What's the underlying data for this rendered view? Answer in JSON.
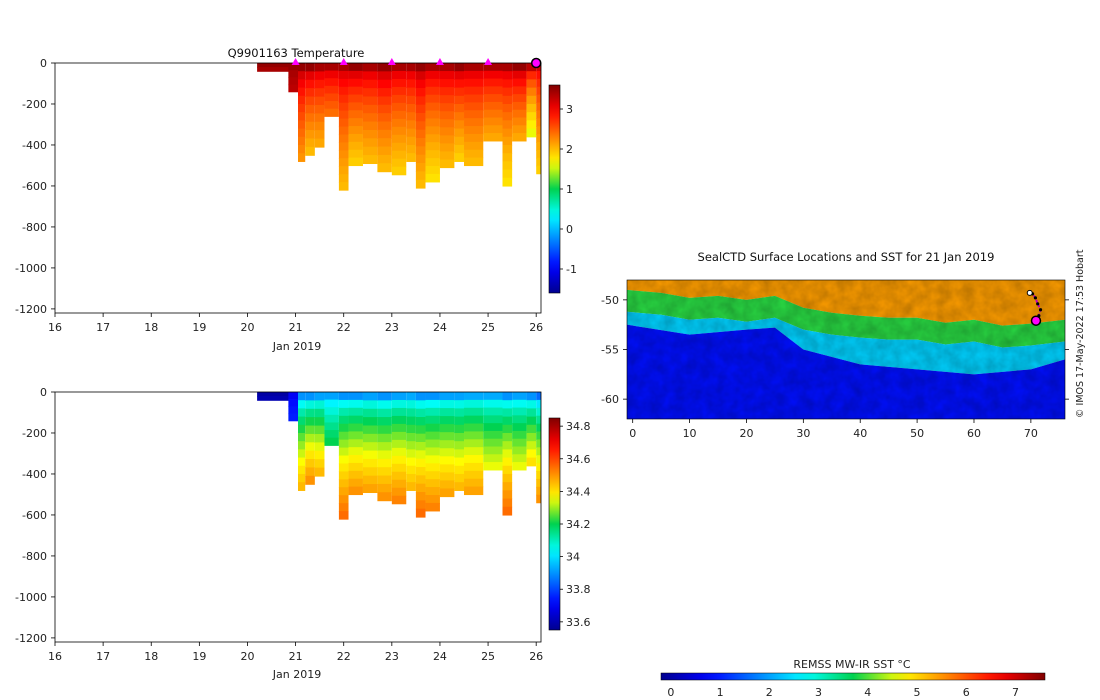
{
  "chart_data": [
    {
      "type": "heatmap",
      "id": "temperature-section",
      "title": "Q9901163  Temperature",
      "xlabel": "Jan 2019",
      "ylabel": "",
      "xlim": [
        16,
        26.1
      ],
      "ylim": [
        -1220,
        0
      ],
      "xticks": [
        16,
        17,
        18,
        19,
        20,
        21,
        22,
        23,
        24,
        25,
        26
      ],
      "xtick_labels": [
        "16",
        "17",
        "18",
        "19",
        "20",
        "21",
        "22",
        "23",
        "24",
        "25",
        "26"
      ],
      "yticks": [
        0,
        -200,
        -400,
        -600,
        -800,
        -1000,
        -1200
      ],
      "ytick_labels": [
        "0",
        "-200",
        "-400",
        "-600",
        "-800",
        "-1000",
        "-1200"
      ],
      "colorbar": {
        "min": -1.6,
        "max": 3.6,
        "ticks": [
          -1,
          0,
          1,
          2,
          3
        ],
        "tick_labels": [
          "-1",
          "0",
          "1",
          "2",
          "3"
        ]
      },
      "surface_markers_x": [
        21,
        22,
        23,
        24,
        25
      ],
      "latest_marker_x": 26.0,
      "profiles": [
        {
          "x": 20.2,
          "w": 0.7,
          "depth": 40,
          "surface": 3.5,
          "deep": 3.4
        },
        {
          "x": 20.85,
          "w": 0.2,
          "depth": 140,
          "surface": 3.5,
          "deep": 3.3
        },
        {
          "x": 21.05,
          "w": 0.15,
          "depth": 480,
          "surface": 3.5,
          "deep": 2.2
        },
        {
          "x": 21.2,
          "w": 0.2,
          "depth": 450,
          "surface": 3.5,
          "deep": 2.0
        },
        {
          "x": 21.4,
          "w": 0.2,
          "depth": 410,
          "surface": 3.4,
          "deep": 2.1
        },
        {
          "x": 21.6,
          "w": 0.3,
          "depth": 260,
          "surface": 3.4,
          "deep": 2.4
        },
        {
          "x": 21.9,
          "w": 0.2,
          "depth": 620,
          "surface": 3.4,
          "deep": 2.0
        },
        {
          "x": 22.1,
          "w": 0.3,
          "depth": 500,
          "surface": 3.5,
          "deep": 1.9
        },
        {
          "x": 22.4,
          "w": 0.3,
          "depth": 490,
          "surface": 3.4,
          "deep": 2.0
        },
        {
          "x": 22.7,
          "w": 0.3,
          "depth": 530,
          "surface": 3.5,
          "deep": 2.0
        },
        {
          "x": 23.0,
          "w": 0.3,
          "depth": 545,
          "surface": 3.4,
          "deep": 1.9
        },
        {
          "x": 23.3,
          "w": 0.2,
          "depth": 480,
          "surface": 3.4,
          "deep": 2.0
        },
        {
          "x": 23.5,
          "w": 0.2,
          "depth": 610,
          "surface": 3.5,
          "deep": 2.0
        },
        {
          "x": 23.7,
          "w": 0.3,
          "depth": 580,
          "surface": 3.4,
          "deep": 1.8
        },
        {
          "x": 24.0,
          "w": 0.3,
          "depth": 510,
          "surface": 3.4,
          "deep": 2.0
        },
        {
          "x": 24.3,
          "w": 0.2,
          "depth": 480,
          "surface": 3.5,
          "deep": 1.9
        },
        {
          "x": 24.5,
          "w": 0.4,
          "depth": 500,
          "surface": 3.4,
          "deep": 2.0
        },
        {
          "x": 24.9,
          "w": 0.4,
          "depth": 380,
          "surface": 3.4,
          "deep": 2.1
        },
        {
          "x": 25.3,
          "w": 0.2,
          "depth": 600,
          "surface": 3.4,
          "deep": 1.8
        },
        {
          "x": 25.5,
          "w": 0.3,
          "depth": 380,
          "surface": 3.5,
          "deep": 2.1
        },
        {
          "x": 25.8,
          "w": 0.2,
          "depth": 360,
          "surface": 3.3,
          "deep": 1.6
        },
        {
          "x": 26.0,
          "w": 0.1,
          "depth": 540,
          "surface": 3.2,
          "deep": 1.9
        }
      ]
    },
    {
      "type": "heatmap",
      "id": "salinity-section",
      "title": "",
      "xlabel": "Jan 2019",
      "ylabel": "",
      "xlim": [
        16,
        26.1
      ],
      "ylim": [
        -1220,
        0
      ],
      "xticks": [
        16,
        17,
        18,
        19,
        20,
        21,
        22,
        23,
        24,
        25,
        26
      ],
      "xtick_labels": [
        "16",
        "17",
        "18",
        "19",
        "20",
        "21",
        "22",
        "23",
        "24",
        "25",
        "26"
      ],
      "yticks": [
        0,
        -200,
        -400,
        -600,
        -800,
        -1000,
        -1200
      ],
      "ytick_labels": [
        "0",
        "-200",
        "-400",
        "-600",
        "-800",
        "-1000",
        "-1200"
      ],
      "colorbar": {
        "min": 33.55,
        "max": 34.85,
        "ticks": [
          33.6,
          33.8,
          34,
          34.2,
          34.4,
          34.6,
          34.8
        ],
        "tick_labels": [
          "33.6",
          "33.8",
          "34",
          "34.2",
          "34.4",
          "34.6",
          "34.8"
        ]
      },
      "profiles": [
        {
          "x": 20.2,
          "w": 0.7,
          "depth": 40,
          "surface": 33.58,
          "deep": 33.6
        },
        {
          "x": 20.85,
          "w": 0.2,
          "depth": 140,
          "surface": 33.7,
          "deep": 33.75
        },
        {
          "x": 21.05,
          "w": 0.15,
          "depth": 480,
          "surface": 33.9,
          "deep": 34.45
        },
        {
          "x": 21.2,
          "w": 0.2,
          "depth": 450,
          "surface": 33.9,
          "deep": 34.5
        },
        {
          "x": 21.4,
          "w": 0.2,
          "depth": 410,
          "surface": 33.92,
          "deep": 34.45
        },
        {
          "x": 21.6,
          "w": 0.3,
          "depth": 260,
          "surface": 33.92,
          "deep": 34.2
        },
        {
          "x": 21.9,
          "w": 0.2,
          "depth": 620,
          "surface": 33.9,
          "deep": 34.55
        },
        {
          "x": 22.1,
          "w": 0.3,
          "depth": 500,
          "surface": 33.9,
          "deep": 34.5
        },
        {
          "x": 22.4,
          "w": 0.3,
          "depth": 490,
          "surface": 33.92,
          "deep": 34.48
        },
        {
          "x": 22.7,
          "w": 0.3,
          "depth": 530,
          "surface": 33.9,
          "deep": 34.5
        },
        {
          "x": 23.0,
          "w": 0.3,
          "depth": 545,
          "surface": 33.92,
          "deep": 34.52
        },
        {
          "x": 23.3,
          "w": 0.2,
          "depth": 480,
          "surface": 33.93,
          "deep": 34.45
        },
        {
          "x": 23.5,
          "w": 0.2,
          "depth": 610,
          "surface": 33.9,
          "deep": 34.55
        },
        {
          "x": 23.7,
          "w": 0.3,
          "depth": 580,
          "surface": 33.9,
          "deep": 34.52
        },
        {
          "x": 24.0,
          "w": 0.3,
          "depth": 510,
          "surface": 33.92,
          "deep": 34.48
        },
        {
          "x": 24.3,
          "w": 0.2,
          "depth": 480,
          "surface": 33.92,
          "deep": 34.45
        },
        {
          "x": 24.5,
          "w": 0.4,
          "depth": 500,
          "surface": 33.93,
          "deep": 34.48
        },
        {
          "x": 24.9,
          "w": 0.4,
          "depth": 380,
          "surface": 33.93,
          "deep": 34.35
        },
        {
          "x": 25.3,
          "w": 0.2,
          "depth": 600,
          "surface": 33.9,
          "deep": 34.55
        },
        {
          "x": 25.5,
          "w": 0.3,
          "depth": 380,
          "surface": 33.92,
          "deep": 34.35
        },
        {
          "x": 25.8,
          "w": 0.2,
          "depth": 360,
          "surface": 33.9,
          "deep": 34.4
        },
        {
          "x": 26.0,
          "w": 0.1,
          "depth": 540,
          "surface": 33.85,
          "deep": 34.5
        }
      ]
    },
    {
      "type": "heatmap",
      "id": "sst-map",
      "title": "SealCTD Surface Locations and SST for 21 Jan 2019",
      "xlabel": "",
      "ylabel": "",
      "xlim": [
        -1,
        76
      ],
      "ylim": [
        -62,
        -48
      ],
      "xticks": [
        0,
        10,
        20,
        30,
        40,
        50,
        60,
        70
      ],
      "xtick_labels": [
        "0",
        "10",
        "20",
        "30",
        "40",
        "50",
        "60",
        "70"
      ],
      "yticks": [
        -50,
        -55,
        -60
      ],
      "ytick_labels": [
        "-50",
        "-55",
        "-60"
      ],
      "colorbar": {
        "label": "REMSS MW-IR SST °C",
        "min": -0.2,
        "max": 7.6,
        "ticks": [
          0,
          1,
          2,
          3,
          4,
          5,
          6,
          7
        ],
        "tick_labels": [
          "0",
          "1",
          "2",
          "3",
          "4",
          "5",
          "6",
          "7"
        ]
      },
      "sst_front_north": [
        [
          -1,
          -51.2
        ],
        [
          5,
          -51.5
        ],
        [
          10,
          -52
        ],
        [
          15,
          -51.8
        ],
        [
          20,
          -52.2
        ],
        [
          25,
          -51.8
        ],
        [
          30,
          -53
        ],
        [
          35,
          -53.5
        ],
        [
          40,
          -53.8
        ],
        [
          45,
          -54
        ],
        [
          50,
          -54
        ],
        [
          55,
          -54.5
        ],
        [
          60,
          -54.2
        ],
        [
          65,
          -54.8
        ],
        [
          70,
          -54.6
        ],
        [
          76,
          -54.2
        ]
      ],
      "sst_front_south": [
        [
          -1,
          -52.5
        ],
        [
          10,
          -53.5
        ],
        [
          20,
          -53
        ],
        [
          25,
          -52.8
        ],
        [
          30,
          -55
        ],
        [
          40,
          -56.5
        ],
        [
          50,
          -57
        ],
        [
          60,
          -57.5
        ],
        [
          70,
          -57
        ],
        [
          76,
          -56
        ]
      ],
      "seal_track": [
        [
          69.8,
          -49.3
        ],
        [
          70.3,
          -49.4
        ],
        [
          70.8,
          -49.8
        ],
        [
          71.2,
          -50.4
        ],
        [
          71.7,
          -51.0
        ],
        [
          71.4,
          -51.6
        ],
        [
          70.9,
          -52.1
        ]
      ],
      "seal_start": [
        69.8,
        -49.3
      ],
      "seal_current": [
        70.9,
        -52.1
      ]
    }
  ],
  "watermark": "© IMOS 17-May-2022 17:53 Hobart"
}
